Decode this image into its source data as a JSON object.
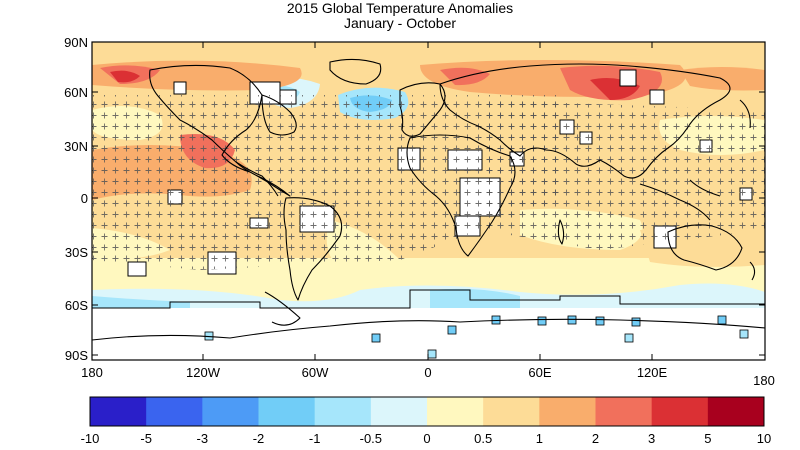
{
  "title": "2015 Global Temperature Anomalies",
  "subtitle": "January - October",
  "map": {
    "lat_ticks": [
      "90N",
      "60N",
      "30N",
      "0",
      "30S",
      "60S",
      "90S"
    ],
    "lon_ticks": [
      "180",
      "120W",
      "60W",
      "0",
      "60E",
      "120E"
    ],
    "lon_tick_end": "180"
  },
  "colorbar": {
    "labels": [
      "-10",
      "-5",
      "-3",
      "-2",
      "-1",
      "-0.5",
      "0",
      "0.5",
      "1",
      "2",
      "3",
      "5",
      "10"
    ],
    "colors": [
      "#2a1fc9",
      "#3a64ef",
      "#4d9bf6",
      "#71cdf7",
      "#a6e6fb",
      "#dcf6fb",
      "#fff8bf",
      "#fddc97",
      "#f9ad6c",
      "#f1705c",
      "#db3034",
      "#a8001e"
    ]
  }
}
